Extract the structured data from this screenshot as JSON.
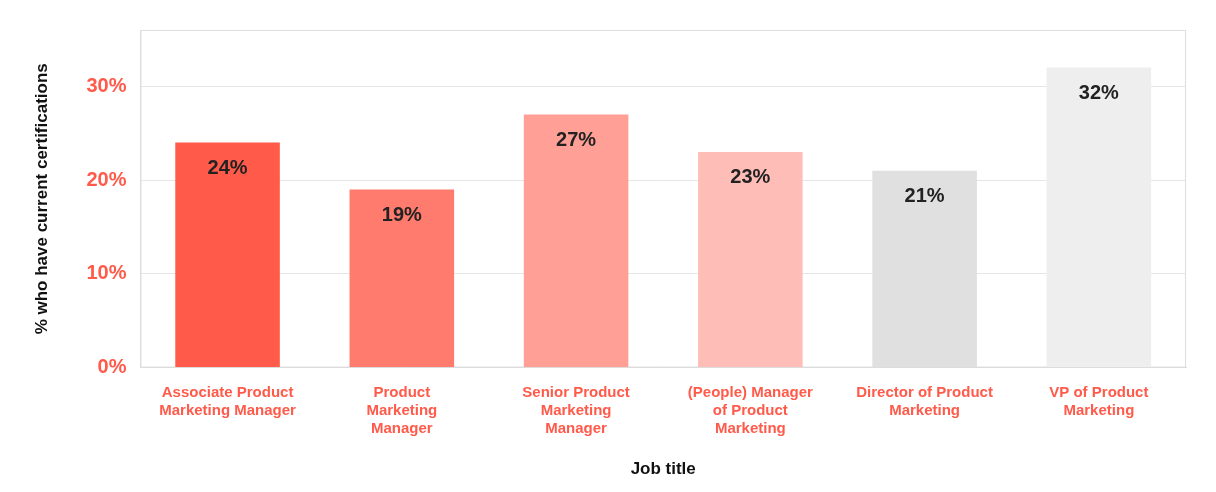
{
  "chart_data": {
    "type": "bar",
    "x_label": "Job title",
    "y_label": "% who have current certifications",
    "categories": [
      [
        "Associate Product",
        "Marketing Manager"
      ],
      [
        "Product",
        "Marketing",
        "Manager"
      ],
      [
        "Senior Product",
        "Marketing",
        "Manager"
      ],
      [
        "(People) Manager",
        "of Product",
        "Marketing"
      ],
      [
        "Director of Product",
        "Marketing"
      ],
      [
        "VP of Product",
        "Marketing"
      ]
    ],
    "values": [
      24,
      19,
      27,
      23,
      21,
      32
    ],
    "value_labels": [
      "24%",
      "19%",
      "27%",
      "23%",
      "21%",
      "32%"
    ],
    "colors": [
      "#ff5a4a",
      "#ff7b6d",
      "#ff9f95",
      "#ffbdb7",
      "#e0e0e0",
      "#eeeeee"
    ],
    "ylim": [
      0,
      36
    ],
    "yticks": [
      {
        "value": 0,
        "label": "0%"
      },
      {
        "value": 10,
        "label": "10%"
      },
      {
        "value": 20,
        "label": "20%"
      },
      {
        "value": 30,
        "label": "30%"
      }
    ],
    "grid": true,
    "data_labels": true
  }
}
